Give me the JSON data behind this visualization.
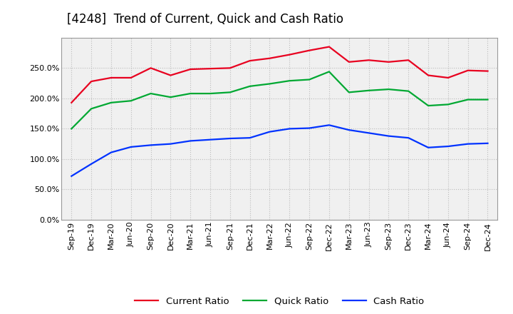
{
  "title": "[4248]  Trend of Current, Quick and Cash Ratio",
  "labels": [
    "Sep-19",
    "Dec-19",
    "Mar-20",
    "Jun-20",
    "Sep-20",
    "Dec-20",
    "Mar-21",
    "Jun-21",
    "Sep-21",
    "Dec-21",
    "Mar-22",
    "Jun-22",
    "Sep-22",
    "Dec-22",
    "Mar-23",
    "Jun-23",
    "Sep-23",
    "Dec-23",
    "Mar-24",
    "Jun-24",
    "Sep-24",
    "Dec-24"
  ],
  "current_ratio": [
    193,
    228,
    234,
    234,
    250,
    238,
    248,
    249,
    250,
    262,
    266,
    272,
    279,
    285,
    260,
    263,
    260,
    263,
    238,
    234,
    246,
    245
  ],
  "quick_ratio": [
    150,
    183,
    193,
    196,
    208,
    202,
    208,
    208,
    210,
    220,
    224,
    229,
    231,
    244,
    210,
    213,
    215,
    212,
    188,
    190,
    198,
    198
  ],
  "cash_ratio": [
    72,
    92,
    111,
    120,
    123,
    125,
    130,
    132,
    134,
    135,
    145,
    150,
    151,
    156,
    148,
    143,
    138,
    135,
    119,
    121,
    125,
    126
  ],
  "current_color": "#e8001f",
  "quick_color": "#00a832",
  "cash_color": "#0032ff",
  "ylim": [
    0,
    300
  ],
  "yticks": [
    0,
    50,
    100,
    150,
    200,
    250
  ],
  "background_color": "#ffffff",
  "plot_bg_color": "#f0f0f0",
  "grid_color": "#bbbbbb",
  "title_fontsize": 12,
  "legend_fontsize": 9.5,
  "tick_fontsize": 8
}
